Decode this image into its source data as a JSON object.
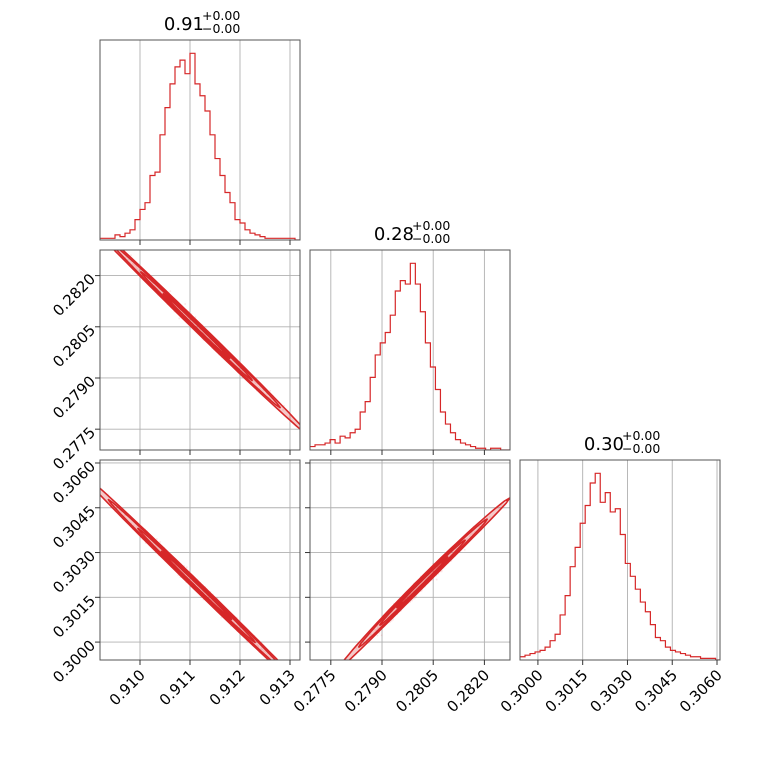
{
  "chart_data": {
    "type": "corner",
    "color": "#d62728",
    "grid": true,
    "parameters": [
      {
        "index": 0,
        "range": [
          0.9092,
          0.9132
        ],
        "ticks": [
          "0.910",
          "0.911",
          "0.912",
          "0.913"
        ],
        "title_value": "0.91",
        "title_plus": "+0.00",
        "title_minus": "−0.00"
      },
      {
        "index": 1,
        "range": [
          0.27689,
          0.28275
        ],
        "ticks": [
          "0.2775",
          "0.2790",
          "0.2805",
          "0.2820"
        ],
        "title_value": "0.28",
        "title_plus": "+0.00",
        "title_minus": "−0.00"
      },
      {
        "index": 2,
        "range": [
          0.2994,
          0.3061
        ],
        "ticks": [
          "0.3000",
          "0.3015",
          "0.3030",
          "0.3045",
          "0.3060"
        ],
        "title_value": "0.30",
        "title_plus": "+0.00",
        "title_minus": "−0.00"
      }
    ],
    "histograms": [
      {
        "param": 0,
        "start": 0.9092,
        "step": 0.0001,
        "counts": [
          1,
          1,
          1,
          3,
          2,
          4,
          6,
          12,
          18,
          22,
          38,
          40,
          62,
          78,
          92,
          102,
          106,
          98,
          110,
          92,
          85,
          76,
          62,
          48,
          38,
          28,
          22,
          12,
          10,
          6,
          4,
          3,
          2,
          1,
          1,
          1,
          1,
          1,
          1,
          0
        ]
      },
      {
        "param": 1,
        "start": 0.27689,
        "step": 0.000147,
        "counts": [
          2,
          3,
          3,
          4,
          6,
          4,
          8,
          7,
          10,
          12,
          22,
          28,
          42,
          55,
          62,
          68,
          78,
          92,
          98,
          96,
          108,
          96,
          80,
          62,
          48,
          35,
          22,
          15,
          10,
          6,
          4,
          3,
          2,
          1,
          1,
          0,
          1,
          1,
          0,
          0
        ]
      },
      {
        "param": 2,
        "start": 0.2994,
        "step": 0.000168,
        "counts": [
          2,
          3,
          4,
          5,
          6,
          8,
          12,
          16,
          28,
          40,
          58,
          70,
          85,
          96,
          110,
          116,
          98,
          104,
          92,
          94,
          78,
          60,
          52,
          44,
          36,
          30,
          22,
          14,
          12,
          8,
          6,
          5,
          4,
          3,
          2,
          2,
          1,
          1,
          1,
          0
        ]
      }
    ],
    "pairs": [
      {
        "x": 0,
        "y": 1,
        "center": [
          0.91113,
          0.28052
        ],
        "slope": -1.4275,
        "half_length": 0.00112,
        "half_width": 5.2e-05
      },
      {
        "x": 0,
        "y": 2,
        "center": [
          0.91113,
          0.3019
        ],
        "slope": -1.63,
        "half_length": 0.00118,
        "half_width": 3.8e-05
      },
      {
        "x": 1,
        "y": 2,
        "center": [
          0.28018,
          0.302
        ],
        "slope": 1.14,
        "half_length": 0.00126,
        "half_width": 7.5e-05,
        "curvature": 1.8e-05
      }
    ],
    "contour_levels": [
      0.6,
      1.0,
      1.5,
      2.0
    ]
  }
}
